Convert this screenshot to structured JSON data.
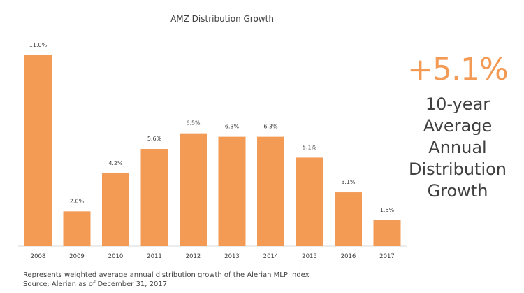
{
  "title": "AMZ Distribution Growth",
  "headline": {
    "value": "+5.1%",
    "label_lines": [
      "10-year",
      "Average",
      "Annual",
      "Distribution",
      "Growth"
    ]
  },
  "footnotes": [
    "Represents weighted average annual distribution growth of the Alerian MLP Index",
    "Source: Alerian as of December 31, 2017"
  ],
  "colors": {
    "bar": "#F39A55",
    "text": "#404040",
    "axis": "#d9d9d9"
  },
  "chart_data": {
    "type": "bar",
    "title": "AMZ Distribution Growth",
    "categories": [
      "2008",
      "2009",
      "2010",
      "2011",
      "2012",
      "2013",
      "2014",
      "2015",
      "2016",
      "2017"
    ],
    "values": [
      11.0,
      2.0,
      4.2,
      5.6,
      6.5,
      6.3,
      6.3,
      5.1,
      3.1,
      1.5
    ],
    "data_labels": [
      "11.0%",
      "2.0%",
      "4.2%",
      "5.6%",
      "6.5%",
      "6.3%",
      "6.3%",
      "5.1%",
      "3.1%",
      "1.5%"
    ],
    "ylim": [
      0,
      11
    ],
    "grid": false,
    "legend": "none"
  }
}
